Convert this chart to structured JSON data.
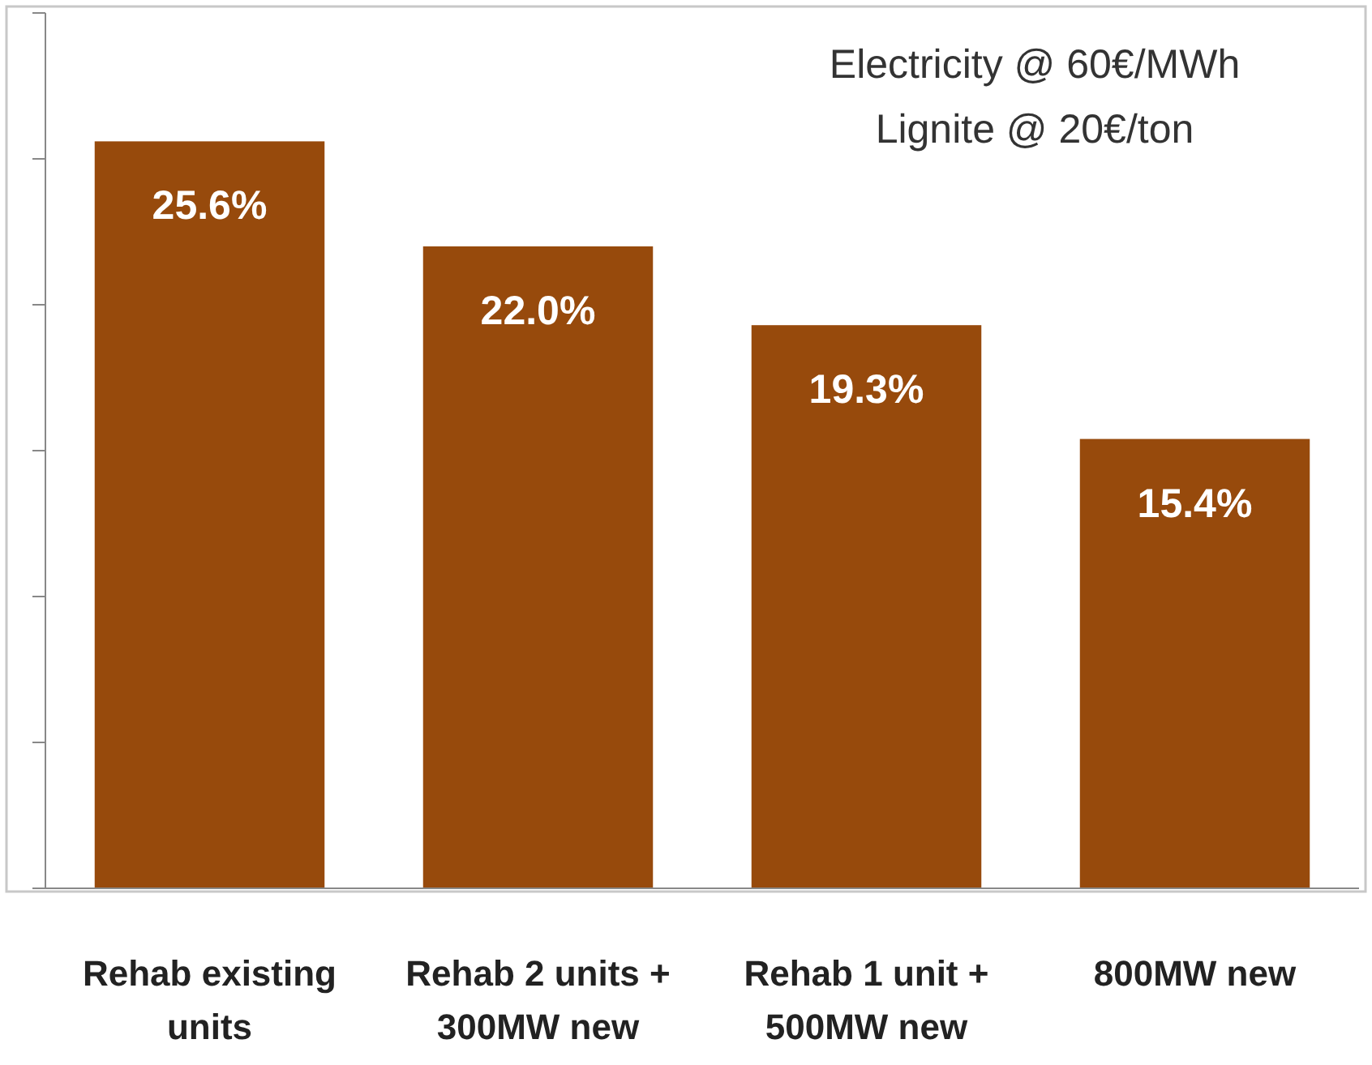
{
  "chart_data": {
    "type": "bar",
    "categories": [
      "Rehab existing units",
      "Rehab 2 units + 300MW new",
      "Rehab 1 unit + 500MW new",
      "800MW new"
    ],
    "values": [
      25.6,
      22.0,
      19.3,
      15.4
    ],
    "value_labels": [
      "25.6%",
      "22.0%",
      "19.3%",
      "15.4%"
    ],
    "color": "#974a0c",
    "ylim": [
      0,
      30
    ],
    "yticks": [
      {
        "value": 0,
        "label": null
      },
      {
        "value": 5,
        "label": null
      },
      {
        "value": 10,
        "label": null
      },
      {
        "value": 15,
        "label": null
      },
      {
        "value": 20,
        "label": null
      },
      {
        "value": 25,
        "label": null
      },
      {
        "value": 30,
        "label": null
      }
    ],
    "tick_labels": "x",
    "grid": false,
    "annotations": [
      "Electricity @ 60€/MWh",
      "Lignite @ 20€/ton"
    ]
  }
}
